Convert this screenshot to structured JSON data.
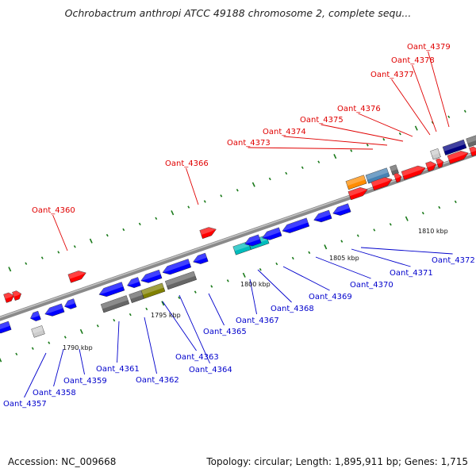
{
  "title": "Ochrobactrum anthropi ATCC 49188 chromosome 2, complete sequ...",
  "accession": "Accession: NC_009668",
  "summary": "Topology: circular; Length: 1,895,911 bp; Genes: 1,715",
  "scale_labels": [
    "1790 kbp",
    "1795 kbp",
    "1800 kbp",
    "1805 kbp",
    "1810 kbp"
  ],
  "colors": {
    "forward_label": "#e00000",
    "reverse_label": "#0000cc",
    "forward_gene": "#ff0000",
    "reverse_gene": "#0000ff",
    "backbone": "#8a8a8a",
    "tick": "#1a7a1a"
  },
  "forward_genes": [
    "Oant_4360",
    "Oant_4366",
    "Oant_4373",
    "Oant_4374",
    "Oant_4375",
    "Oant_4376",
    "Oant_4377",
    "Oant_4378",
    "Oant_4379"
  ],
  "reverse_genes": [
    "Oant_4357",
    "Oant_4358",
    "Oant_4359",
    "Oant_4361",
    "Oant_4362",
    "Oant_4363",
    "Oant_4364",
    "Oant_4365",
    "Oant_4367",
    "Oant_4368",
    "Oant_4369",
    "Oant_4370",
    "Oant_4371",
    "Oant_4372"
  ]
}
